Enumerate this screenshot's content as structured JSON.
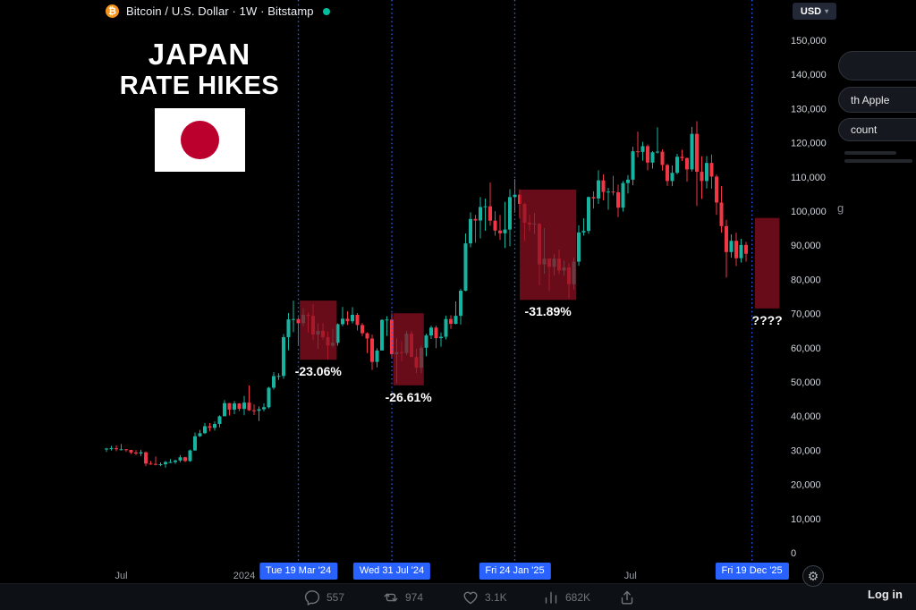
{
  "header": {
    "symbol_title": "Bitcoin / U.S. Dollar · 1W · Bitstamp",
    "bitcoin_symbol": "₿",
    "currency": "USD",
    "caret": "▾"
  },
  "overlay": {
    "title_line1": "JAPAN",
    "title_line2": "RATE HIKES"
  },
  "right_panel": {
    "apple_button_fragment": "th Apple",
    "account_button_fragment": "count",
    "stray_fragment": "g",
    "login_label": "Log in"
  },
  "bottom_bar": {
    "actions": [
      {
        "name": "reply",
        "count": "557"
      },
      {
        "name": "repost",
        "count": "974"
      },
      {
        "name": "like",
        "count": "3.1K"
      },
      {
        "name": "views",
        "count": "682K"
      },
      {
        "name": "share",
        "count": ""
      }
    ]
  },
  "gear_glyph": "⚙",
  "colors": {
    "up": "#17b3a1",
    "down": "#f23645",
    "marker_line": "#2962ff",
    "marker_label_bg": "#2962ff",
    "box_fill": "#8b1020",
    "axis_text": "#cfd3da",
    "x_axis_text": "#9aa0a8",
    "accent_teal": "#00bfa0",
    "bitcoin_orange": "#f7931a",
    "flag_red": "#bc002d"
  },
  "chart_data": {
    "type": "candlestick",
    "title": "Bitcoin / U.S. Dollar",
    "timeframe": "1W",
    "exchange": "Bitstamp",
    "y_axis": {
      "min": 0,
      "max": 150000,
      "labels": [
        "150,000",
        "140,000",
        "130,000",
        "120,000",
        "110,000",
        "100,000",
        "90,000",
        "80,000",
        "70,000",
        "60,000",
        "50,000",
        "40,000",
        "30,000",
        "20,000",
        "10,000",
        "0"
      ]
    },
    "x_axis": {
      "labels": [
        {
          "text": "Jul",
          "week": 3
        },
        {
          "text": "2024",
          "week": 28
        },
        {
          "text": "Jul",
          "week": 106.5
        }
      ]
    },
    "markers": [
      {
        "label": "Tue 19 Mar '24",
        "week": 39
      },
      {
        "label": "Wed 31 Jul '24",
        "week": 58
      },
      {
        "label": "Fri 24 Jan '25",
        "week": 83
      },
      {
        "label": "Fri 19 Dec '25",
        "week": 131.2
      }
    ],
    "drawdown_boxes": [
      {
        "label": "-23.06%",
        "week_from": 39.3,
        "week_to": 46.8,
        "price_top": 73800,
        "price_bottom": 56500
      },
      {
        "label": "-26.61%",
        "week_from": 58.3,
        "week_to": 64.5,
        "price_top": 70100,
        "price_bottom": 49000
      },
      {
        "label": "-31.89%",
        "week_from": 84.0,
        "week_to": 95.5,
        "price_top": 106300,
        "price_bottom": 74000
      },
      {
        "label": "????",
        "week_from": 131.8,
        "week_to": 136.8,
        "price_top": 98000,
        "price_bottom": 71500
      }
    ],
    "candles": [
      [
        30400,
        30700,
        29500,
        30500
      ],
      [
        30500,
        31300,
        29900,
        30600
      ],
      [
        30600,
        31400,
        29700,
        30300
      ],
      [
        30300,
        31850,
        29950,
        30300
      ],
      [
        30300,
        30350,
        29550,
        30100
      ],
      [
        30100,
        30150,
        28900,
        29350
      ],
      [
        29350,
        30050,
        28600,
        29050
      ],
      [
        29050,
        30150,
        28300,
        29400
      ],
      [
        29400,
        29650,
        25350,
        26100
      ],
      [
        26100,
        26850,
        25750,
        26000
      ],
      [
        26000,
        28150,
        25550,
        25850
      ],
      [
        25850,
        26450,
        25350,
        25900
      ],
      [
        25900,
        26850,
        24900,
        26550
      ],
      [
        26550,
        27450,
        26250,
        26550
      ],
      [
        26550,
        27300,
        26000,
        27000
      ],
      [
        27000,
        28600,
        26500,
        27950
      ],
      [
        27950,
        28100,
        26550,
        26850
      ],
      [
        26850,
        30200,
        26650,
        29950
      ],
      [
        29950,
        35200,
        29800,
        34100
      ],
      [
        34100,
        35950,
        33900,
        35000
      ],
      [
        35000,
        38000,
        34750,
        37050
      ],
      [
        37050,
        37950,
        35550,
        36550
      ],
      [
        36550,
        38450,
        35750,
        37700
      ],
      [
        37700,
        40200,
        36700,
        39950
      ],
      [
        39950,
        44700,
        39950,
        43800
      ],
      [
        43800,
        43800,
        40150,
        41900
      ],
      [
        41900,
        44400,
        40550,
        43700
      ],
      [
        43700,
        43800,
        41450,
        42100
      ],
      [
        42100,
        45900,
        40250,
        43950
      ],
      [
        43950,
        48950,
        41500,
        41700
      ],
      [
        41700,
        43400,
        40300,
        41550
      ],
      [
        41550,
        42850,
        38550,
        42000
      ],
      [
        42000,
        43750,
        41400,
        42600
      ],
      [
        42600,
        48550,
        42250,
        48300
      ],
      [
        48300,
        52850,
        47750,
        51700
      ],
      [
        51700,
        52550,
        50600,
        51750
      ],
      [
        51750,
        64000,
        50900,
        63100
      ],
      [
        63100,
        70200,
        59250,
        68300
      ],
      [
        68300,
        73800,
        64550,
        68400
      ],
      [
        68400,
        68950,
        60750,
        67200
      ],
      [
        67200,
        71550,
        66350,
        69650
      ],
      [
        69650,
        70350,
        64500,
        69350
      ],
      [
        69350,
        72750,
        62250,
        63850
      ],
      [
        63850,
        67100,
        59650,
        64950
      ],
      [
        64950,
        67200,
        62350,
        63100
      ],
      [
        63100,
        64750,
        56550,
        60650
      ],
      [
        60650,
        65500,
        60150,
        61450
      ],
      [
        61450,
        67100,
        60600,
        66900
      ],
      [
        66900,
        71950,
        66300,
        68500
      ],
      [
        68500,
        70650,
        66650,
        67750
      ],
      [
        67750,
        71900,
        67100,
        69650
      ],
      [
        69650,
        70150,
        65050,
        66650
      ],
      [
        66650,
        67250,
        63400,
        64250
      ],
      [
        64250,
        64500,
        58400,
        62700
      ],
      [
        62700,
        63850,
        53500,
        55850
      ],
      [
        55850,
        59850,
        54250,
        59200
      ],
      [
        59200,
        68350,
        59200,
        68150
      ],
      [
        68150,
        69250,
        63450,
        68250
      ],
      [
        68250,
        70050,
        57100,
        58100
      ],
      [
        58100,
        62750,
        49550,
        58700
      ],
      [
        58700,
        61850,
        56100,
        58450
      ],
      [
        58450,
        64950,
        57850,
        64100
      ],
      [
        64100,
        65000,
        57750,
        57300
      ],
      [
        57300,
        59800,
        52550,
        54150
      ],
      [
        54150,
        60650,
        52600,
        60000
      ],
      [
        60000,
        64100,
        57500,
        63600
      ],
      [
        63600,
        66450,
        62550,
        65900
      ],
      [
        65900,
        66450,
        59850,
        62800
      ],
      [
        62800,
        64450,
        60300,
        63200
      ],
      [
        63200,
        69400,
        62450,
        68400
      ],
      [
        68400,
        69500,
        65500,
        67000
      ],
      [
        67000,
        73600,
        66850,
        69350
      ],
      [
        69350,
        77250,
        66800,
        76700
      ],
      [
        76700,
        93450,
        76550,
        90550
      ],
      [
        90550,
        99650,
        89400,
        97700
      ],
      [
        97700,
        98900,
        90750,
        97250
      ],
      [
        97250,
        104100,
        92000,
        101200
      ],
      [
        101200,
        103650,
        94250,
        101400
      ],
      [
        101400,
        108350,
        95700,
        97200
      ],
      [
        97200,
        99950,
        92800,
        94300
      ],
      [
        94300,
        98850,
        91550,
        93500
      ],
      [
        93500,
        102700,
        89200,
        94600
      ],
      [
        94600,
        106400,
        89700,
        104100
      ],
      [
        104100,
        109350,
        99550,
        104800
      ],
      [
        104800,
        106300,
        97800,
        102100
      ],
      [
        102100,
        102500,
        91250,
        96600
      ],
      [
        96600,
        98850,
        94250,
        96100
      ],
      [
        96100,
        99450,
        93350,
        96300
      ],
      [
        96300,
        96500,
        78250,
        84400
      ],
      [
        84400,
        95000,
        81650,
        86100
      ],
      [
        86100,
        86100,
        76600,
        83700
      ],
      [
        83700,
        87450,
        81150,
        86100
      ],
      [
        86100,
        88750,
        81550,
        82600
      ],
      [
        82600,
        85550,
        81200,
        83500
      ],
      [
        83500,
        84700,
        74400,
        78600
      ],
      [
        78600,
        86450,
        77050,
        85200
      ],
      [
        85200,
        95850,
        84000,
        93750
      ],
      [
        93750,
        97900,
        92850,
        94200
      ],
      [
        94200,
        104300,
        93350,
        104100
      ],
      [
        104100,
        105800,
        100750,
        103700
      ],
      [
        103700,
        111950,
        102100,
        109000
      ],
      [
        109000,
        110750,
        103150,
        105600
      ],
      [
        105600,
        106800,
        100400,
        105700
      ],
      [
        105700,
        110350,
        104600,
        105500
      ],
      [
        105500,
        107750,
        98250,
        101000
      ],
      [
        101000,
        108800,
        99850,
        108200
      ],
      [
        108200,
        110550,
        105150,
        109200
      ],
      [
        109200,
        118850,
        107550,
        117500
      ],
      [
        117500,
        123250,
        115750,
        117300
      ],
      [
        117300,
        120250,
        114750,
        119000
      ],
      [
        119000,
        119500,
        111950,
        114200
      ],
      [
        114200,
        117550,
        112400,
        117200
      ],
      [
        117200,
        124500,
        116850,
        117400
      ],
      [
        117400,
        118050,
        111850,
        113500
      ],
      [
        113500,
        113800,
        107350,
        108800
      ],
      [
        108800,
        113350,
        107300,
        111200
      ],
      [
        111200,
        116750,
        110750,
        115900
      ],
      [
        115900,
        117950,
        114650,
        115500
      ],
      [
        115500,
        115750,
        108650,
        112200
      ],
      [
        112200,
        124650,
        111600,
        122600
      ],
      [
        122600,
        126300,
        101500,
        111500
      ],
      [
        111500,
        116050,
        103550,
        108800
      ],
      [
        108800,
        116100,
        106600,
        114100
      ],
      [
        114100,
        116550,
        106550,
        110100
      ],
      [
        110100,
        110700,
        98900,
        102500
      ],
      [
        102500,
        107300,
        93650,
        95600
      ],
      [
        95600,
        97450,
        80550,
        88000
      ],
      [
        88000,
        93150,
        86350,
        91300
      ],
      [
        91300,
        93650,
        83900,
        86200
      ],
      [
        86200,
        91900,
        84950,
        90100
      ],
      [
        90100,
        91000,
        85200,
        87500
      ]
    ]
  }
}
